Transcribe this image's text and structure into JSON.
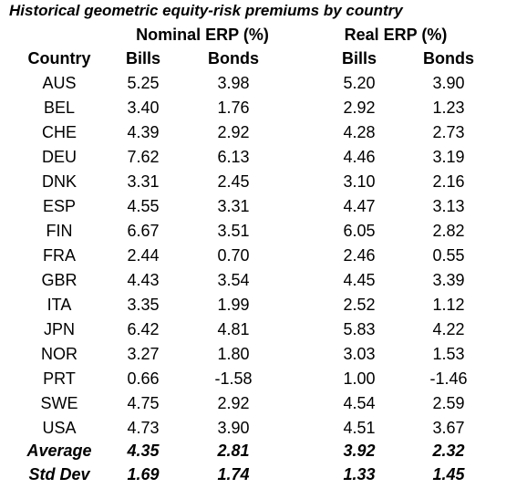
{
  "title": "Historical geometric equity-risk premiums by country",
  "table": {
    "group_headers": [
      "Nominal ERP (%)",
      "Real ERP (%)"
    ],
    "columns": [
      "Country",
      "Bills",
      "Bonds",
      "Bills",
      "Bonds"
    ],
    "rows": [
      [
        "AUS",
        "5.25",
        "3.98",
        "5.20",
        "3.90"
      ],
      [
        "BEL",
        "3.40",
        "1.76",
        "2.92",
        "1.23"
      ],
      [
        "CHE",
        "4.39",
        "2.92",
        "4.28",
        "2.73"
      ],
      [
        "DEU",
        "7.62",
        "6.13",
        "4.46",
        "3.19"
      ],
      [
        "DNK",
        "3.31",
        "2.45",
        "3.10",
        "2.16"
      ],
      [
        "ESP",
        "4.55",
        "3.31",
        "4.47",
        "3.13"
      ],
      [
        "FIN",
        "6.67",
        "3.51",
        "6.05",
        "2.82"
      ],
      [
        "FRA",
        "2.44",
        "0.70",
        "2.46",
        "0.55"
      ],
      [
        "GBR",
        "4.43",
        "3.54",
        "4.45",
        "3.39"
      ],
      [
        "ITA",
        "3.35",
        "1.99",
        "2.52",
        "1.12"
      ],
      [
        "JPN",
        "6.42",
        "4.81",
        "5.83",
        "4.22"
      ],
      [
        "NOR",
        "3.27",
        "1.80",
        "3.03",
        "1.53"
      ],
      [
        "PRT",
        "0.66",
        "-1.58",
        "1.00",
        "-1.46"
      ],
      [
        "SWE",
        "4.75",
        "2.92",
        "4.54",
        "2.59"
      ],
      [
        "USA",
        "4.73",
        "3.90",
        "4.51",
        "3.67"
      ]
    ],
    "summary_rows": [
      [
        "Average",
        "4.35",
        "2.81",
        "3.92",
        "2.32"
      ],
      [
        "Std Dev",
        "1.69",
        "1.74",
        "1.33",
        "1.45"
      ]
    ]
  }
}
